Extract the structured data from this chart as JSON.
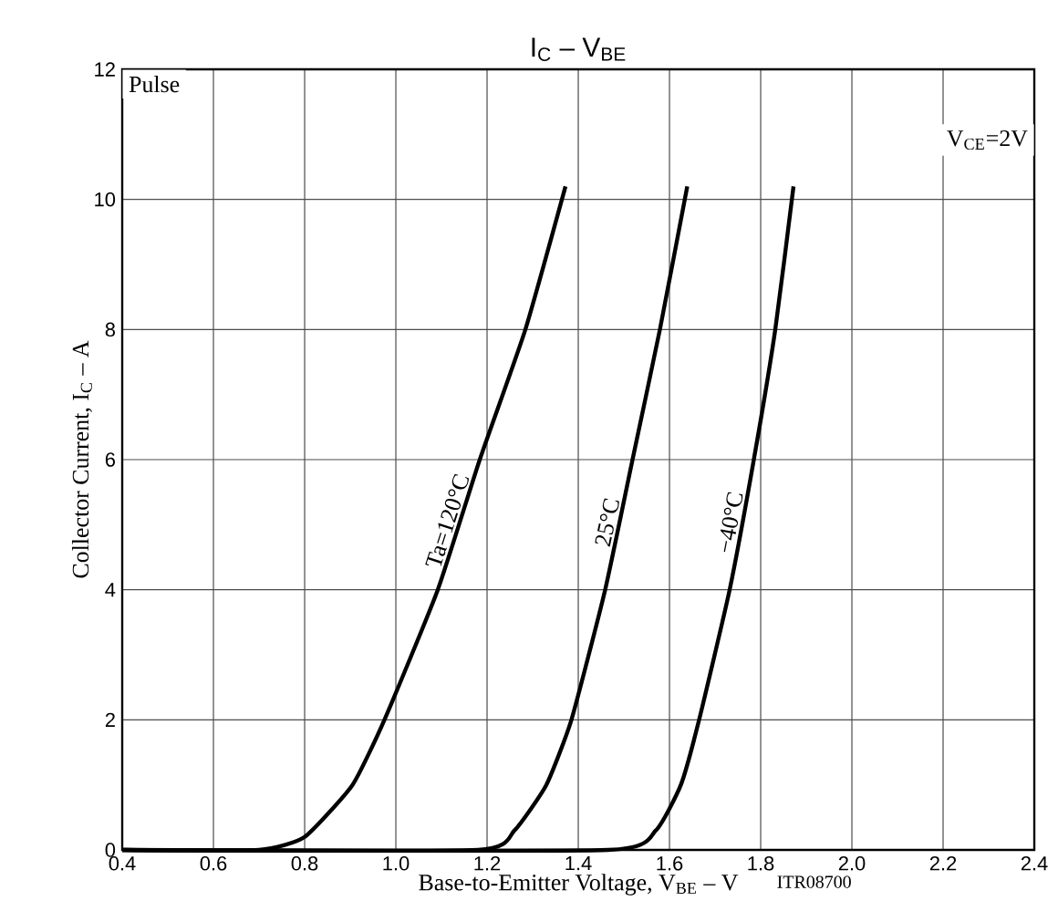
{
  "chart_data": {
    "type": "line",
    "title": "I$_{C}$ – V$_{BE}$",
    "xlabel": "Base-to-Emitter Voltage, V$_{BE}$ – V",
    "ylabel": "Collector Current, I$_{C}$ – A",
    "annotations": [
      "Pulse",
      "V$_{CE}$=2V",
      "ITR08700"
    ],
    "xlim": [
      0.4,
      2.4
    ],
    "ylim": [
      0,
      12
    ],
    "xticks": [
      {
        "value": 0.4,
        "label": "0.4"
      },
      {
        "value": 0.6,
        "label": "0.6"
      },
      {
        "value": 0.8,
        "label": "0.8"
      },
      {
        "value": 1.0,
        "label": "1.0"
      },
      {
        "value": 1.2,
        "label": "1.2"
      },
      {
        "value": 1.4,
        "label": "1.4"
      },
      {
        "value": 1.6,
        "label": "1.6"
      },
      {
        "value": 1.8,
        "label": "1.8"
      },
      {
        "value": 2.0,
        "label": "2.0"
      },
      {
        "value": 2.2,
        "label": "2.2"
      },
      {
        "value": 2.4,
        "label": "2.4"
      }
    ],
    "yticks": [
      0,
      2,
      4,
      6,
      8,
      10,
      12
    ],
    "grid": true,
    "legend": false,
    "marker": "none",
    "line_style": "solid",
    "series": [
      {
        "name": "Ta=120°C",
        "color": "#000000",
        "x": [
          0.4,
          0.7,
          0.8,
          0.905,
          0.975,
          1.092,
          1.184,
          1.284,
          1.372
        ],
        "values": [
          0,
          0,
          0.2,
          1,
          2,
          4,
          6,
          8,
          10.2
        ]
      },
      {
        "name": "25°C",
        "color": "#000000",
        "x": [
          0.4,
          1.18,
          1.26,
          1.33,
          1.385,
          1.459,
          1.519,
          1.579,
          1.639
        ],
        "values": [
          0,
          0,
          0.3,
          1,
          2,
          4,
          6,
          8,
          10.2
        ]
      },
      {
        "name": "−40°C",
        "color": "#000000",
        "x": [
          0.4,
          1.465,
          1.57,
          1.625,
          1.665,
          1.732,
          1.785,
          1.832,
          1.872
        ],
        "values": [
          0,
          0,
          0.3,
          1,
          2,
          4,
          6,
          8,
          10.2
        ]
      }
    ]
  }
}
